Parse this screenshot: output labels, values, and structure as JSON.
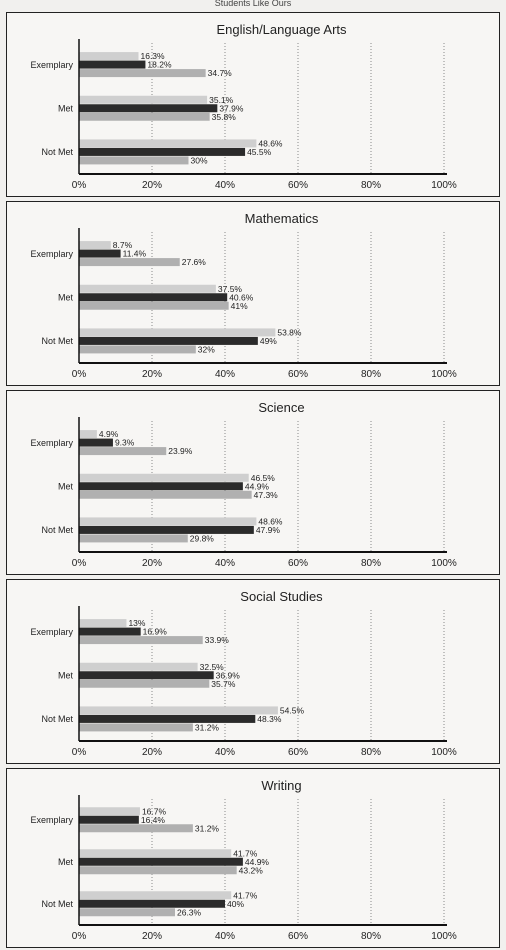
{
  "page_header": "Students Like Ours",
  "chart_data": [
    {
      "type": "bar",
      "title": "English/Language Arts",
      "categories": [
        "Exemplary",
        "Met",
        "Not Met"
      ],
      "series": [
        {
          "values": [
            16.3,
            35.1,
            48.6
          ],
          "labels": [
            "16.3%",
            "35.1%",
            "48.6%"
          ],
          "color": "#cfcfcf"
        },
        {
          "values": [
            18.2,
            37.9,
            45.5
          ],
          "labels": [
            "18.2%",
            "37.9%",
            "45.5%"
          ],
          "color": "#2b2b2b"
        },
        {
          "values": [
            34.7,
            35.8,
            30
          ],
          "labels": [
            "34.7%",
            "35.8%",
            "30%"
          ],
          "color": "#b0b0b0"
        }
      ],
      "xticks": [
        "0%",
        "20%",
        "40%",
        "60%",
        "80%",
        "100%"
      ],
      "xlim": [
        0,
        100
      ]
    },
    {
      "type": "bar",
      "title": "Mathematics",
      "categories": [
        "Exemplary",
        "Met",
        "Not Met"
      ],
      "series": [
        {
          "values": [
            8.7,
            37.5,
            53.8
          ],
          "labels": [
            "8.7%",
            "37.5%",
            "53.8%"
          ],
          "color": "#cfcfcf"
        },
        {
          "values": [
            11.4,
            40.6,
            49
          ],
          "labels": [
            "11.4%",
            "40.6%",
            "49%"
          ],
          "color": "#2b2b2b"
        },
        {
          "values": [
            27.6,
            41,
            32
          ],
          "labels": [
            "27.6%",
            "41%",
            "32%"
          ],
          "color": "#b0b0b0"
        }
      ],
      "xticks": [
        "0%",
        "20%",
        "40%",
        "60%",
        "80%",
        "100%"
      ],
      "xlim": [
        0,
        100
      ]
    },
    {
      "type": "bar",
      "title": "Science",
      "categories": [
        "Exemplary",
        "Met",
        "Not Met"
      ],
      "series": [
        {
          "values": [
            4.9,
            46.5,
            48.6
          ],
          "labels": [
            "4.9%",
            "46.5%",
            "48.6%"
          ],
          "color": "#cfcfcf"
        },
        {
          "values": [
            9.3,
            44.9,
            47.9
          ],
          "labels": [
            "9.3%",
            "44.9%",
            "47.9%"
          ],
          "color": "#2b2b2b"
        },
        {
          "values": [
            23.9,
            47.3,
            29.8
          ],
          "labels": [
            "23.9%",
            "47.3%",
            "29.8%"
          ],
          "color": "#b0b0b0"
        }
      ],
      "xticks": [
        "0%",
        "20%",
        "40%",
        "60%",
        "80%",
        "100%"
      ],
      "xlim": [
        0,
        100
      ]
    },
    {
      "type": "bar",
      "title": "Social Studies",
      "categories": [
        "Exemplary",
        "Met",
        "Not Met"
      ],
      "series": [
        {
          "values": [
            13,
            32.5,
            54.5
          ],
          "labels": [
            "13%",
            "32.5%",
            "54.5%"
          ],
          "color": "#cfcfcf"
        },
        {
          "values": [
            16.9,
            36.9,
            48.3
          ],
          "labels": [
            "16.9%",
            "36.9%",
            "48.3%"
          ],
          "color": "#2b2b2b"
        },
        {
          "values": [
            33.9,
            35.7,
            31.2
          ],
          "labels": [
            "33.9%",
            "35.7%",
            "31.2%"
          ],
          "color": "#b0b0b0"
        }
      ],
      "xticks": [
        "0%",
        "20%",
        "40%",
        "60%",
        "80%",
        "100%"
      ],
      "xlim": [
        0,
        100
      ]
    },
    {
      "type": "bar",
      "title": "Writing",
      "categories": [
        "Exemplary",
        "Met",
        "Not Met"
      ],
      "series": [
        {
          "values": [
            16.7,
            41.7,
            41.7
          ],
          "labels": [
            "16.7%",
            "41.7%",
            "41.7%"
          ],
          "color": "#cfcfcf"
        },
        {
          "values": [
            16.4,
            44.9,
            40
          ],
          "labels": [
            "16.4%",
            "44.9%",
            "40%"
          ],
          "color": "#2b2b2b"
        },
        {
          "values": [
            31.2,
            43.2,
            26.3
          ],
          "labels": [
            "31.2%",
            "43.2%",
            "26.3%"
          ],
          "color": "#b0b0b0"
        }
      ],
      "xticks": [
        "0%",
        "20%",
        "40%",
        "60%",
        "80%",
        "100%"
      ],
      "xlim": [
        0,
        100
      ]
    }
  ]
}
